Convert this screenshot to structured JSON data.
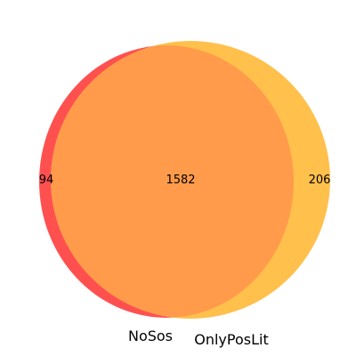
{
  "venn": {
    "type": "venn2",
    "sets": [
      {
        "name": "NoSos",
        "color": "#ff5050",
        "only_count": "94"
      },
      {
        "name": "OnlyPosLit",
        "color": "#ffc04c",
        "only_count": "206"
      }
    ],
    "intersection": {
      "count": "1582",
      "color": "#ff9b4a"
    }
  }
}
